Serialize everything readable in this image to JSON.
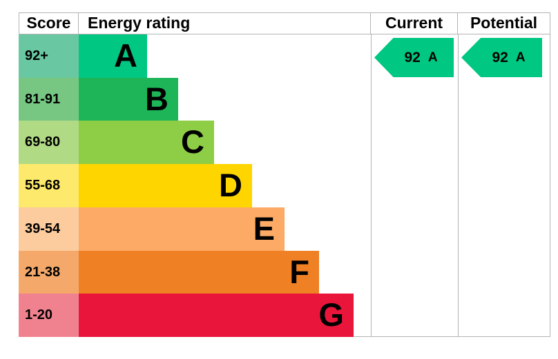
{
  "chart_data": {
    "type": "bar",
    "title": "Energy rating",
    "columns": [
      "Score",
      "Energy rating",
      "Current",
      "Potential"
    ],
    "categories": [
      "A",
      "B",
      "C",
      "D",
      "E",
      "F",
      "G"
    ],
    "score_ranges": [
      "92+",
      "81-91",
      "69-80",
      "55-68",
      "39-54",
      "21-38",
      "1-20"
    ],
    "relative_band_widths": [
      99,
      144,
      196,
      251,
      298,
      348,
      398
    ],
    "current": {
      "score": 92,
      "band": "A"
    },
    "potential": {
      "score": 92,
      "band": "A"
    },
    "band_colors": [
      "#00c781",
      "#1db558",
      "#8dce46",
      "#ffd500",
      "#fcaa65",
      "#ef8023",
      "#e9153b"
    ]
  },
  "header": {
    "score": "Score",
    "energy_rating": "Energy rating",
    "current": "Current",
    "potential": "Potential"
  },
  "bands": [
    {
      "score": "92+",
      "letter": "A",
      "band_color": "#00c781",
      "score_color": "#69c8a2"
    },
    {
      "score": "81-91",
      "letter": "B",
      "band_color": "#1db558",
      "score_color": "#77c783"
    },
    {
      "score": "69-80",
      "letter": "C",
      "band_color": "#8dce46",
      "score_color": "#b1da85"
    },
    {
      "score": "55-68",
      "letter": "D",
      "band_color": "#ffd500",
      "score_color": "#fde96c"
    },
    {
      "score": "39-54",
      "letter": "E",
      "band_color": "#fcaa65",
      "score_color": "#fccb9e"
    },
    {
      "score": "21-38",
      "letter": "F",
      "band_color": "#ef8023",
      "score_color": "#f4a96a"
    },
    {
      "score": "1-20",
      "letter": "G",
      "band_color": "#e9153b",
      "score_color": "#f0828f"
    }
  ],
  "current": {
    "value": "92",
    "letter": "A",
    "color": "#00c781"
  },
  "potential": {
    "value": "92",
    "letter": "A",
    "color": "#00c781"
  },
  "colors": {
    "border": "#b3b3b3",
    "text": "#000000",
    "background": "#ffffff"
  }
}
